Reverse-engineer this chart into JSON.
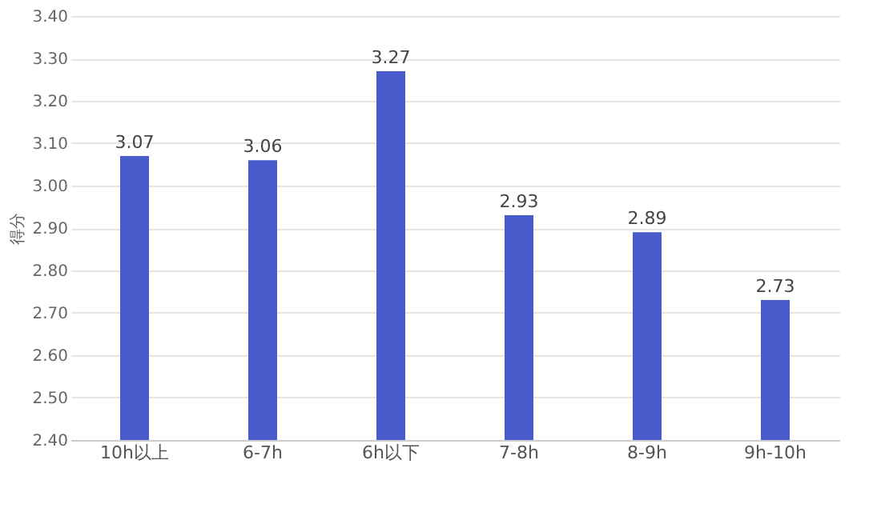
{
  "chart_data": {
    "type": "bar",
    "ylabel": "得分",
    "categories": [
      "10h以上",
      "6-7h",
      "6h以下",
      "7-8h",
      "8-9h",
      "9h-10h"
    ],
    "values": [
      3.07,
      3.06,
      3.27,
      2.93,
      2.89,
      2.73
    ],
    "color": "#4a5ccc",
    "ylim": [
      2.4,
      3.4
    ],
    "yticks": [
      {
        "value": 2.4,
        "label": "2.40"
      },
      {
        "value": 2.5,
        "label": "2.50"
      },
      {
        "value": 2.6,
        "label": "2.60"
      },
      {
        "value": 2.7,
        "label": "2.70"
      },
      {
        "value": 2.8,
        "label": "2.80"
      },
      {
        "value": 2.9,
        "label": "2.90"
      },
      {
        "value": 3.0,
        "label": "3.00"
      },
      {
        "value": 3.1,
        "label": "3.10"
      },
      {
        "value": 3.2,
        "label": "3.20"
      },
      {
        "value": 3.3,
        "label": "3.30"
      },
      {
        "value": 3.4,
        "label": "3.40"
      }
    ],
    "grid": "y",
    "data_labels": true
  }
}
